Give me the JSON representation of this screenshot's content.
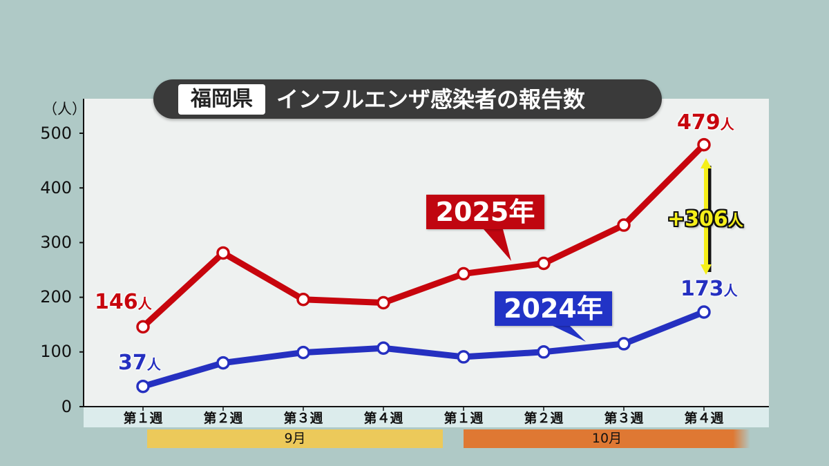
{
  "title": {
    "badge": "福岡県",
    "text": "インフルエンザ感染者の報告数"
  },
  "y_axis": {
    "unit": "（人）",
    "ticks": [
      "500",
      "400",
      "300",
      "200",
      "100",
      "0"
    ]
  },
  "x_axis": {
    "weeks": [
      "第１週",
      "第２週",
      "第３週",
      "第４週",
      "第１週",
      "第２週",
      "第３週",
      "第４週"
    ],
    "months": [
      "9月",
      "10月"
    ]
  },
  "labels": {
    "start_2025": {
      "num": "146",
      "unit": "人"
    },
    "end_2025": {
      "num": "479",
      "unit": "人"
    },
    "start_2024": {
      "num": "37",
      "unit": "人"
    },
    "end_2024": {
      "num": "173",
      "unit": "人"
    },
    "diff": {
      "num": "+306",
      "unit": "人"
    }
  },
  "callouts": {
    "y2025": "2025年",
    "y2024": "2024年"
  },
  "colors": {
    "series_2025": "#c7050d",
    "series_2024": "#2530c0",
    "september": "#ecc95a",
    "october": "#df7833",
    "diff_arrow": "#f5ef1a"
  },
  "chart_data": {
    "type": "line",
    "title": "福岡県 インフルエンザ感染者の報告数",
    "xlabel": "",
    "ylabel": "（人）",
    "ylim": [
      0,
      500
    ],
    "yticks": [
      0,
      100,
      200,
      300,
      400,
      500
    ],
    "grid": false,
    "categories": [
      "9月 第1週",
      "9月 第2週",
      "9月 第3週",
      "9月 第4週",
      "10月 第1週",
      "10月 第2週",
      "10月 第3週",
      "10月 第4週"
    ],
    "series": [
      {
        "name": "2025年",
        "color": "#c7050d",
        "values": [
          146,
          281,
          196,
          190,
          243,
          262,
          332,
          479
        ]
      },
      {
        "name": "2024年",
        "color": "#2530c0",
        "values": [
          37,
          80,
          99,
          107,
          91,
          100,
          115,
          173
        ]
      }
    ],
    "annotations": [
      {
        "text": "146人",
        "series": "2025年",
        "index": 0
      },
      {
        "text": "479人",
        "series": "2025年",
        "index": 7
      },
      {
        "text": "37人",
        "series": "2024年",
        "index": 0
      },
      {
        "text": "173人",
        "series": "2024年",
        "index": 7
      },
      {
        "text": "+306人",
        "type": "difference-arrow",
        "index": 7
      }
    ],
    "legend_position": "inline callouts"
  }
}
